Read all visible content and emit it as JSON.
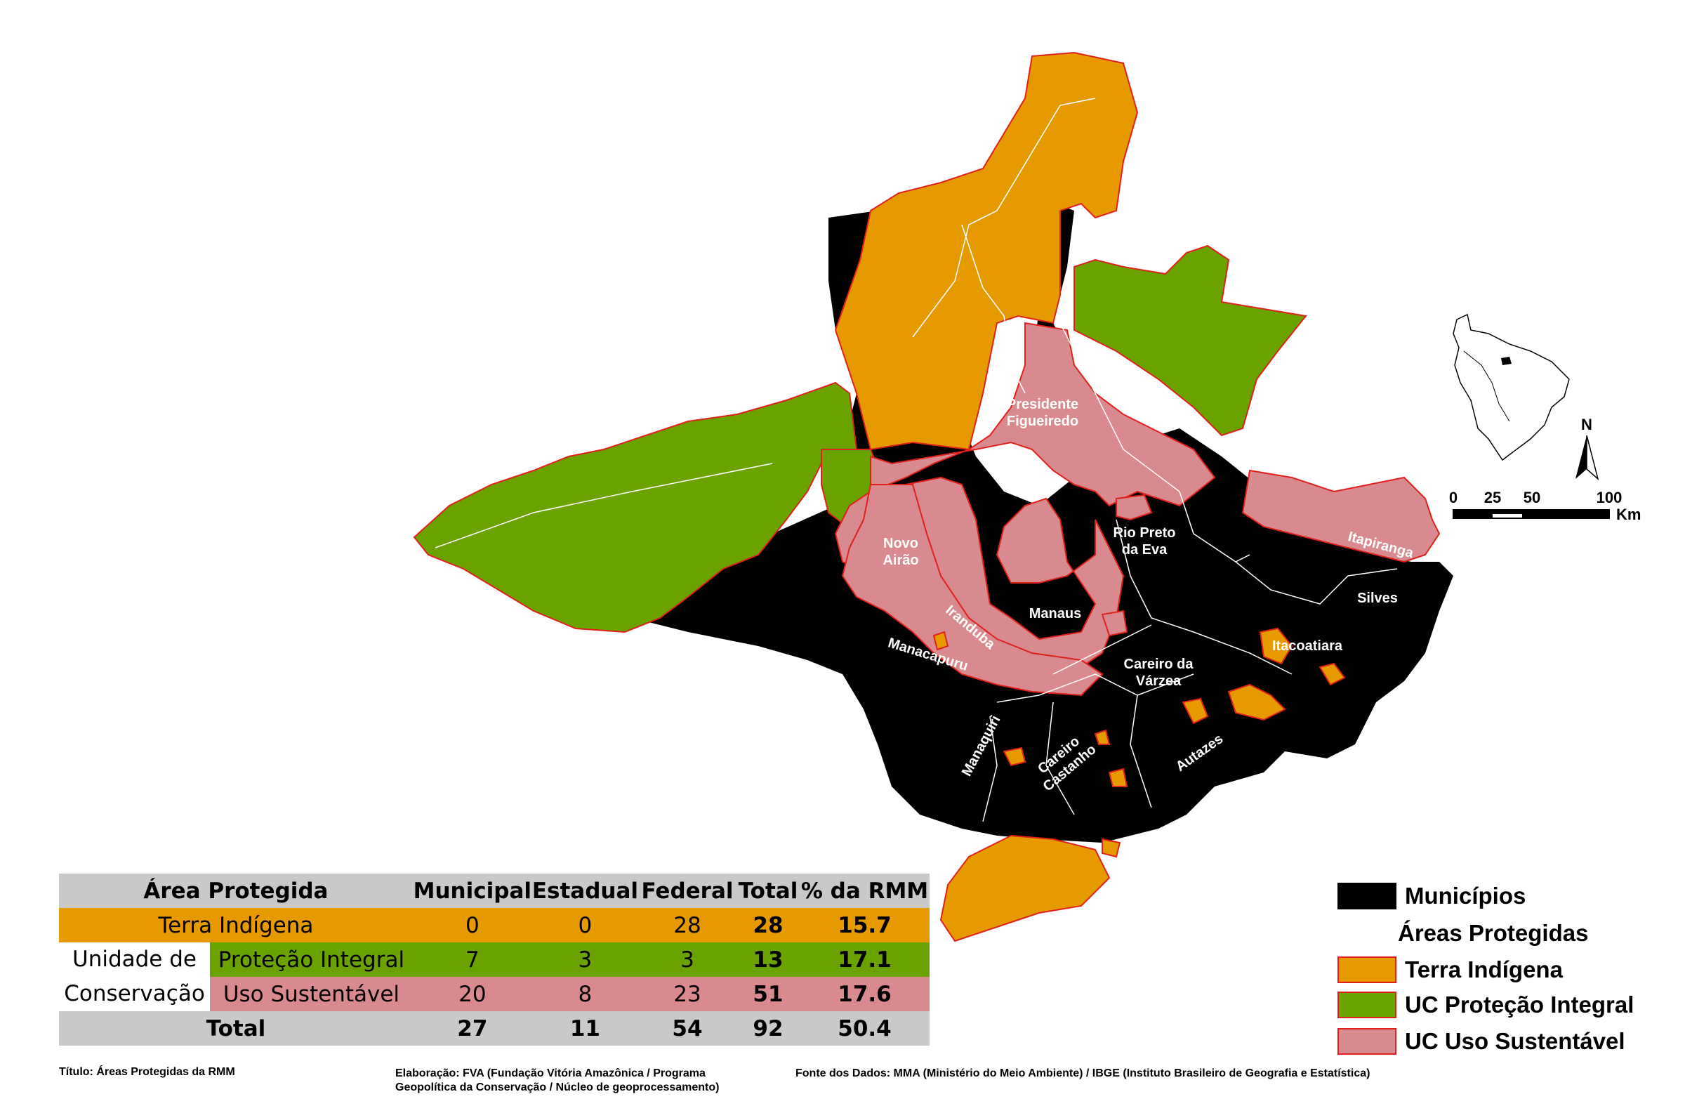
{
  "map": {
    "municipios": [
      {
        "id": "presidente-figueiredo",
        "lines": [
          "Presidente",
          "Figueiredo"
        ]
      },
      {
        "id": "rio-preto-da-eva",
        "lines": [
          "Rio Preto",
          "da Eva"
        ]
      },
      {
        "id": "itapiranga",
        "lines": [
          "Itapiranga"
        ]
      },
      {
        "id": "silves",
        "lines": [
          "Silves"
        ]
      },
      {
        "id": "itacoatiara",
        "lines": [
          "Itacoatiara"
        ]
      },
      {
        "id": "novo-airao",
        "lines": [
          "Novo",
          "Airão"
        ]
      },
      {
        "id": "iranduba",
        "lines": [
          "Iranduba"
        ]
      },
      {
        "id": "manaus",
        "lines": [
          "Manaus"
        ]
      },
      {
        "id": "manacapuru",
        "lines": [
          "Manacapuru"
        ]
      },
      {
        "id": "careiro-da-varzea",
        "lines": [
          "Careiro da",
          "Várzea"
        ]
      },
      {
        "id": "manaquiri",
        "lines": [
          "Manaquiri"
        ]
      },
      {
        "id": "careiro-castanho",
        "lines": [
          "Careiro",
          "Castanho"
        ]
      },
      {
        "id": "autazes",
        "lines": [
          "Autazes"
        ]
      }
    ],
    "scale_bar": {
      "ticks": [
        "0",
        "25",
        "50",
        "100"
      ],
      "unit": "Km"
    },
    "north_label": "N"
  },
  "table": {
    "headers": [
      "Área Protegida",
      "Municipal",
      "Estadual",
      "Federal",
      "Total",
      "% da RMM"
    ],
    "terra_indigena": {
      "label": "Terra Indígena",
      "values": [
        "0",
        "0",
        "28",
        "28",
        "15.7"
      ]
    },
    "uc_label_line1": "Unidade de",
    "uc_label_line2": "Conservação",
    "protecao_integral": {
      "label": "Proteção Integral",
      "values": [
        "7",
        "3",
        "3",
        "13",
        "17.1"
      ]
    },
    "uso_sustentavel": {
      "label": "Uso Sustentável",
      "values": [
        "20",
        "8",
        "23",
        "51",
        "17.6"
      ]
    },
    "total": {
      "label": "Total",
      "values": [
        "27",
        "11",
        "54",
        "92",
        "50.4"
      ]
    }
  },
  "legend": {
    "municipios": "Municípios",
    "title": "Áreas Protegidas",
    "terra_indigena": "Terra Indígena",
    "uc_protecao_integral": "UC Proteção Integral",
    "uc_uso_sustentavel": "UC Uso Sustentável"
  },
  "footer": {
    "titulo": "Título: Áreas Protegidas da RMM",
    "elaboracao_1": "Elaboração: FVA (Fundação Vitória Amazônica / Programa",
    "elaboracao_2": "Geopolítica da Conservação / Núcleo de geoprocessamento)",
    "fonte": "Fonte dos Dados: MMA (Ministério do Meio Ambiente) / IBGE (Instituto Brasileiro de Geografia e Estatística)"
  },
  "colors": {
    "municipios": "#000000",
    "terra_indigena": "#e69a00",
    "protecao_integral": "#6aa300",
    "uso_sustentavel": "#d98a8e",
    "border": "#e0201a"
  }
}
